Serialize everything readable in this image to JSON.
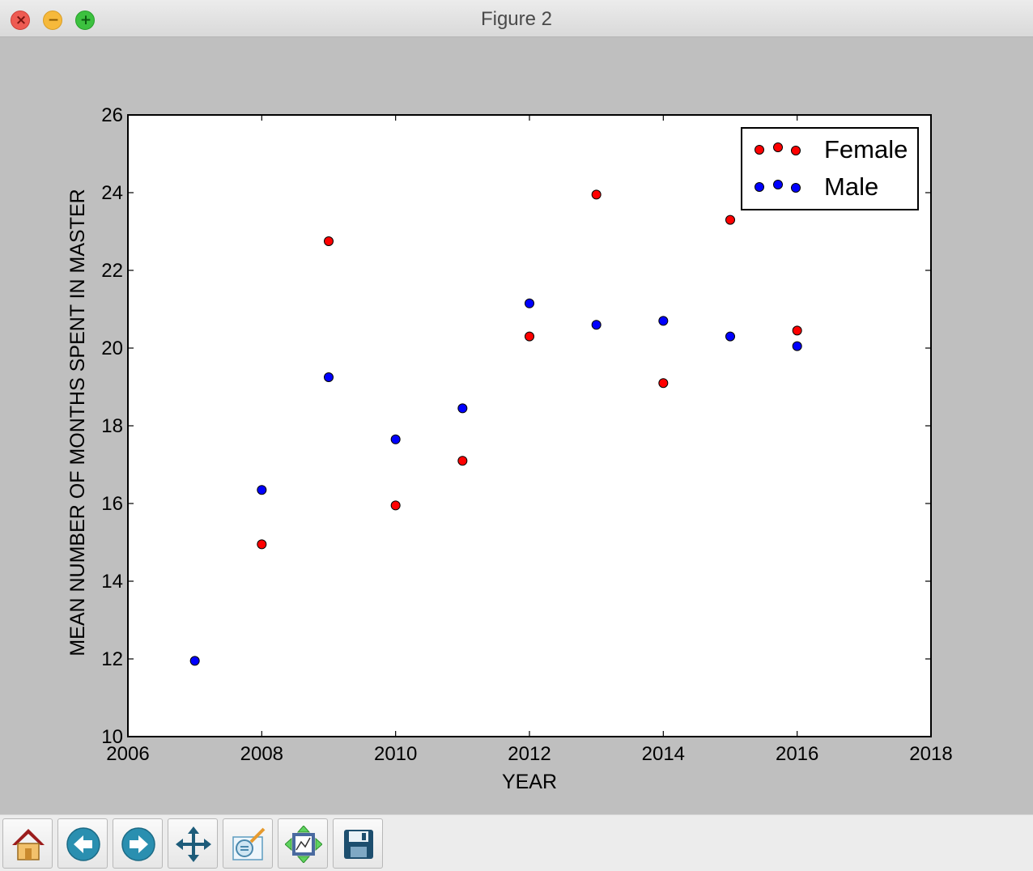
{
  "window": {
    "title": "Figure 2"
  },
  "chart_data": {
    "type": "scatter",
    "xlabel": "YEAR",
    "ylabel": "MEAN NUMBER OF MONTHS SPENT IN MASTER",
    "xlim": [
      2006,
      2018
    ],
    "ylim": [
      10,
      26
    ],
    "xticks": [
      "2006",
      "2008",
      "2010",
      "2012",
      "2014",
      "2016",
      "2018"
    ],
    "yticks": [
      "10",
      "12",
      "14",
      "16",
      "18",
      "20",
      "22",
      "24",
      "26"
    ],
    "grid": false,
    "legend_position": "top-right",
    "series": [
      {
        "name": "Female",
        "color": "#ff0000",
        "points": [
          [
            2008,
            14.95
          ],
          [
            2009,
            22.75
          ],
          [
            2010,
            15.95
          ],
          [
            2011,
            17.1
          ],
          [
            2012,
            20.3
          ],
          [
            2013,
            23.95
          ],
          [
            2014,
            19.1
          ],
          [
            2015,
            23.3
          ],
          [
            2016,
            20.45
          ]
        ]
      },
      {
        "name": "Male",
        "color": "#0000ff",
        "points": [
          [
            2007,
            11.95
          ],
          [
            2008,
            16.35
          ],
          [
            2009,
            19.25
          ],
          [
            2010,
            17.65
          ],
          [
            2011,
            18.45
          ],
          [
            2012,
            21.15
          ],
          [
            2013,
            20.6
          ],
          [
            2014,
            20.7
          ],
          [
            2015,
            20.3
          ],
          [
            2016,
            20.05
          ]
        ]
      }
    ]
  },
  "toolbar": {
    "buttons": [
      {
        "name": "home-button",
        "icon": "home-icon"
      },
      {
        "name": "back-button",
        "icon": "back-arrow-icon"
      },
      {
        "name": "forward-button",
        "icon": "forward-arrow-icon"
      },
      {
        "name": "pan-button",
        "icon": "move-icon"
      },
      {
        "name": "zoom-button",
        "icon": "zoom-rect-icon"
      },
      {
        "name": "subplots-button",
        "icon": "subplots-config-icon"
      },
      {
        "name": "save-button",
        "icon": "floppy-save-icon"
      }
    ]
  }
}
